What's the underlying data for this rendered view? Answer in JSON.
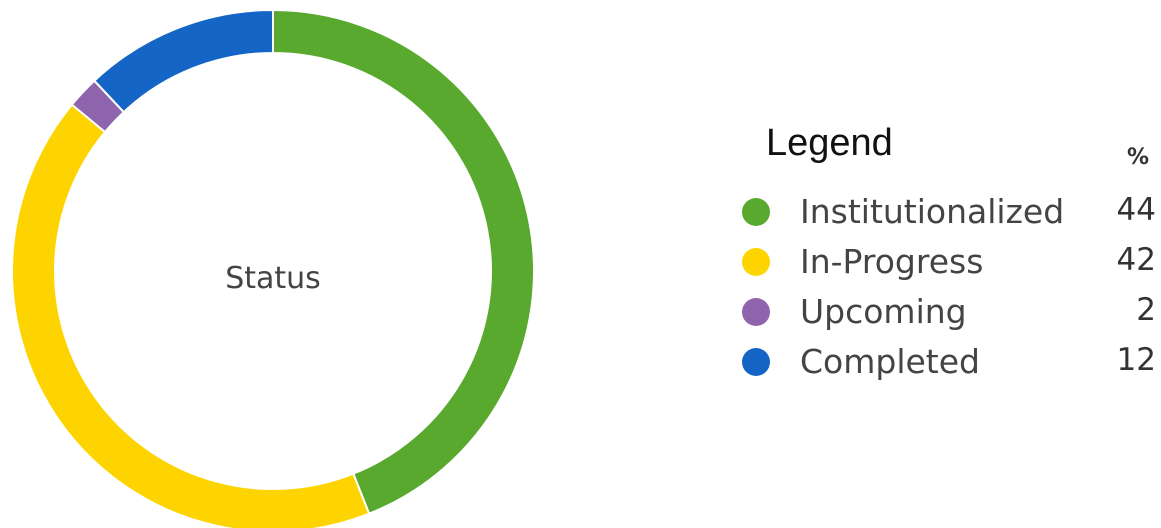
{
  "chart_data": {
    "type": "pie",
    "variant": "donut",
    "center_label": "Status",
    "legend_title": "Legend",
    "value_header": "%",
    "legend_position": "right",
    "categories": [
      "Institutionalized",
      "In-Progress",
      "Upcoming",
      "Completed"
    ],
    "values": [
      44,
      42,
      2,
      12
    ],
    "colors": [
      "#5AA92F",
      "#FDD400",
      "#8E65AC",
      "#1565C6"
    ]
  },
  "legend": {
    "items": [
      {
        "label": "Institutionalized",
        "value": "44",
        "color": "#5AA92F"
      },
      {
        "label": "In-Progress",
        "value": "42",
        "color": "#FDD400"
      },
      {
        "label": "Upcoming",
        "value": "2",
        "color": "#8E65AC"
      },
      {
        "label": "Completed",
        "value": "12",
        "color": "#1565C6"
      }
    ]
  }
}
